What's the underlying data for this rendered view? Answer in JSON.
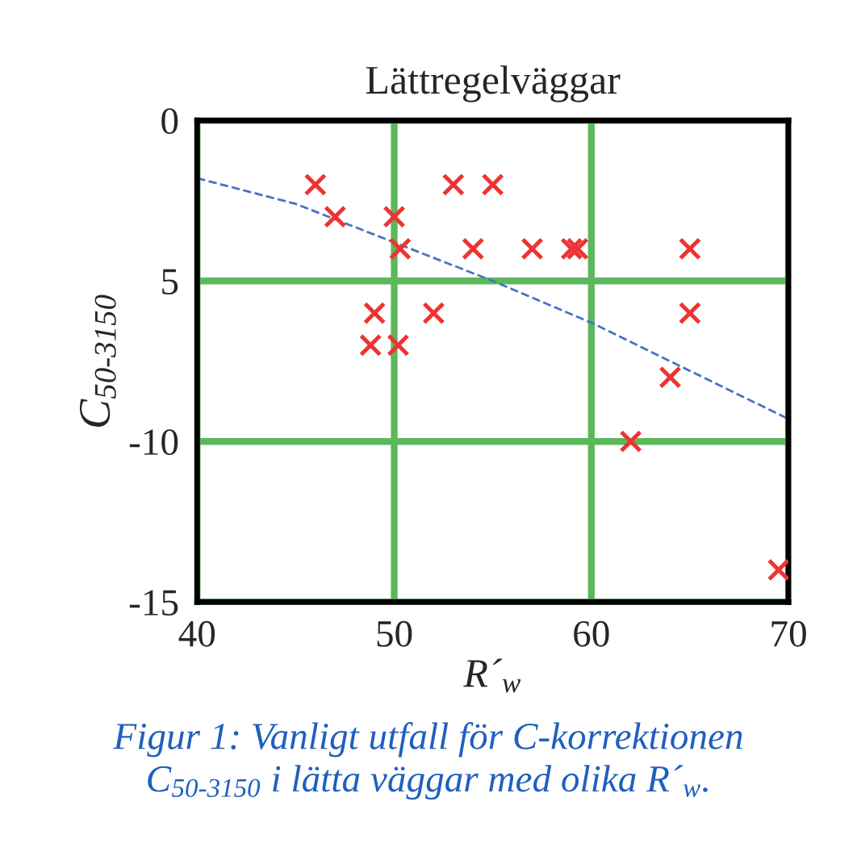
{
  "chart_data": {
    "type": "scatter",
    "title": "Lättregelväggar",
    "xlabel": "R´$_{w}$",
    "ylabel": "C$_{50-3150}$",
    "annotations": [
      "Figur 1: Vanligt utfall för C-korrektionen\nC$_{50-3150}$ i lätta väggar med olika R´$_{w}$."
    ],
    "xlim": [
      40,
      70
    ],
    "xticks": [
      40,
      50,
      60,
      70
    ],
    "ylim": [
      -15,
      0
    ],
    "yticks": [
      {
        "value": -15,
        "label": "-15"
      },
      {
        "value": -10,
        "label": "-10"
      },
      {
        "value": -5,
        "label": "5"
      },
      {
        "value": 0,
        "label": "0"
      }
    ],
    "grid": true,
    "marker": "cross",
    "series": [
      {
        "color": "#ee3333",
        "x": [
          46,
          47,
          50,
          50.3,
          53,
          55,
          54,
          57,
          59,
          59.3,
          65,
          49,
          52,
          65,
          48.8,
          50.2,
          64,
          62,
          69.5
        ],
        "values": [
          -2,
          -3,
          -3,
          -4,
          -2,
          -2,
          -4,
          -4,
          -4,
          -4,
          -4,
          -6,
          -6,
          -6,
          -7,
          -7,
          -8,
          -10,
          -14
        ]
      },
      {
        "type": "line",
        "color": "#4472c4",
        "line_style": "dashed",
        "marker": "none",
        "x": [
          40,
          45,
          50,
          55,
          60,
          65,
          70
        ],
        "values": [
          -1.8,
          -2.6,
          -3.8,
          -5,
          -6.3,
          -7.8,
          -9.3
        ]
      }
    ]
  }
}
